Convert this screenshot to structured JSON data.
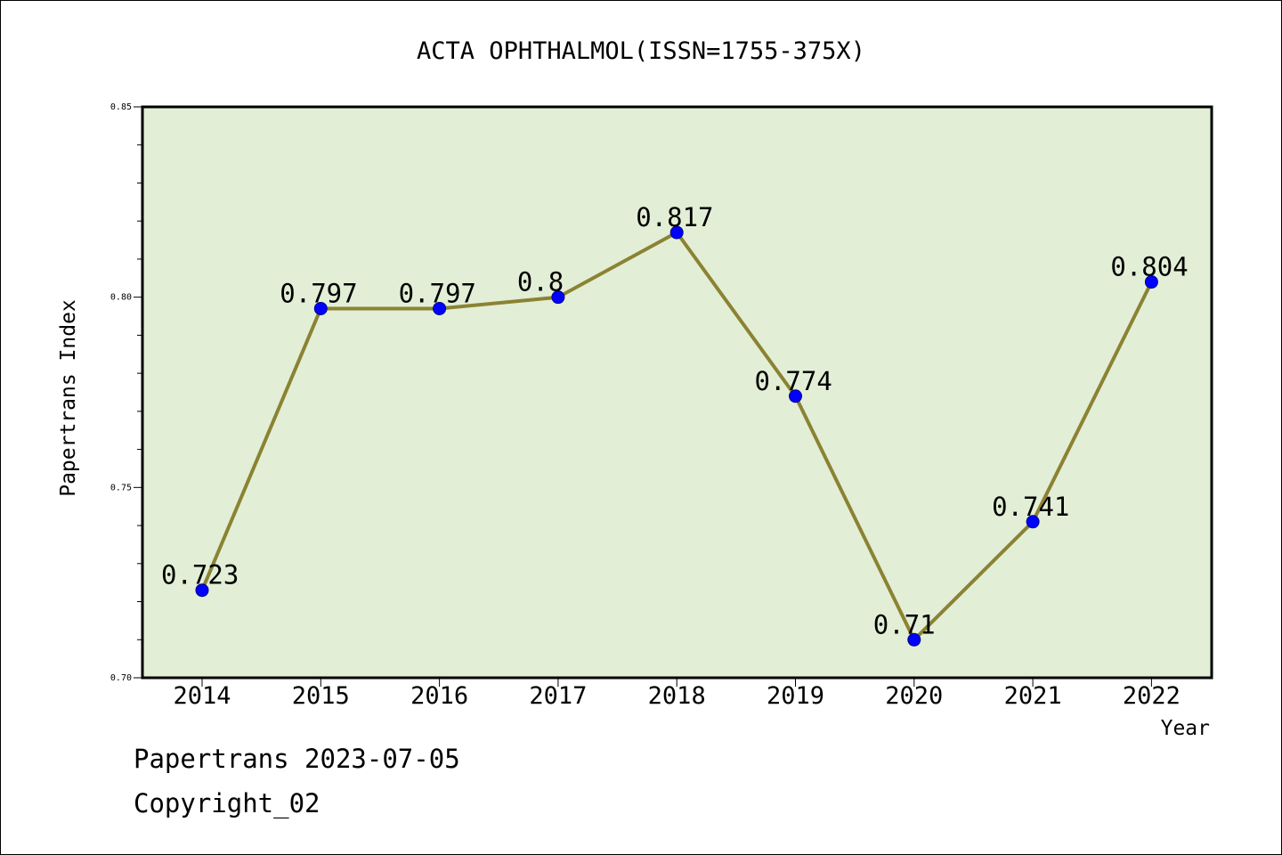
{
  "chart_data": {
    "type": "line",
    "title": "ACTA OPHTHALMOL(ISSN=1755-375X)",
    "xlabel": "Year",
    "ylabel": "Papertrans Index",
    "categories": [
      "2014",
      "2015",
      "2016",
      "2017",
      "2018",
      "2019",
      "2020",
      "2021",
      "2022"
    ],
    "series": [
      {
        "values": [
          0.723,
          0.797,
          0.797,
          0.8,
          0.817,
          0.774,
          0.71,
          0.741,
          0.804
        ],
        "labels": [
          "0.723",
          "0.797",
          "0.797",
          "0.8",
          "0.817",
          "0.774",
          "0.71",
          "0.741",
          "0.804"
        ]
      }
    ],
    "ylim": [
      0.7,
      0.85
    ],
    "yticks": [
      "0.70",
      "0.75",
      "0.80",
      "0.85"
    ],
    "grid": false,
    "colors": {
      "plot_background": "#e2efd6",
      "line": "#8b8233",
      "marker": "#0000ff"
    }
  },
  "footer": {
    "line1": "Papertrans 2023-07-05",
    "line2": "Copyright_02"
  }
}
